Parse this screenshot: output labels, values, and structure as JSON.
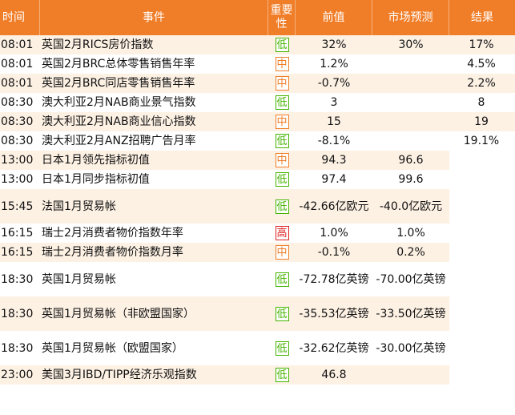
{
  "header": {
    "time": "时间",
    "event": "事件",
    "importance_line1": "重要",
    "importance_line2": "性",
    "previous": "前值",
    "forecast": "市场预测",
    "actual": "结果"
  },
  "importance_colors": {
    "low": "#44b400",
    "medium": "#f07d27",
    "high": "#e02020"
  },
  "rows": [
    {
      "time": "08:01",
      "event": "英国2月RICS房价指数",
      "importance": "低",
      "level": "low",
      "previous": "32%",
      "forecast": "30%",
      "actual": "17%",
      "tall": false,
      "actual_blank": false
    },
    {
      "time": "08:01",
      "event": "英国2月BRC总体零售销售年率",
      "importance": "中",
      "level": "mid",
      "previous": "1.2%",
      "forecast": "",
      "actual": "4.5%",
      "tall": false,
      "actual_blank": false
    },
    {
      "time": "08:01",
      "event": "英国2月BRC同店零售销售年率",
      "importance": "中",
      "level": "mid",
      "previous": "-0.7%",
      "forecast": "",
      "actual": "2.2%",
      "tall": false,
      "actual_blank": false
    },
    {
      "time": "08:30",
      "event": "澳大利亚2月NAB商业景气指数",
      "importance": "低",
      "level": "low",
      "previous": "3",
      "forecast": "",
      "actual": "8",
      "tall": false,
      "actual_blank": false
    },
    {
      "time": "08:30",
      "event": "澳大利亚2月NAB商业信心指数",
      "importance": "中",
      "level": "mid",
      "previous": "15",
      "forecast": "",
      "actual": "19",
      "tall": false,
      "actual_blank": false
    },
    {
      "time": "08:30",
      "event": "澳大利亚2月ANZ招聘广告月率",
      "importance": "低",
      "level": "low",
      "previous": "-8.1%",
      "forecast": "",
      "actual": "19.1%",
      "tall": false,
      "actual_blank": false
    },
    {
      "time": "13:00",
      "event": "日本1月领先指标初值",
      "importance": "中",
      "level": "mid",
      "previous": "94.3",
      "forecast": "96.6",
      "actual": "",
      "tall": false,
      "actual_blank": true
    },
    {
      "time": "13:00",
      "event": "日本1月同步指标初值",
      "importance": "低",
      "level": "low",
      "previous": "97.4",
      "forecast": "99.6",
      "actual": "",
      "tall": false,
      "actual_blank": true
    },
    {
      "time": "15:45",
      "event": "法国1月贸易帐",
      "importance": "低",
      "level": "low",
      "previous": "-42.66亿欧元",
      "forecast": "-40.0亿欧元",
      "actual": "",
      "tall": true,
      "actual_blank": true
    },
    {
      "time": "16:15",
      "event": "瑞士2月消费者物价指数年率",
      "importance": "高",
      "level": "high",
      "previous": "1.0%",
      "forecast": "1.0%",
      "actual": "",
      "tall": false,
      "actual_blank": true
    },
    {
      "time": "16:15",
      "event": "瑞士2月消费者物价指数月率",
      "importance": "中",
      "level": "mid",
      "previous": "-0.1%",
      "forecast": "0.2%",
      "actual": "",
      "tall": false,
      "actual_blank": true
    },
    {
      "time": "18:30",
      "event": "英国1月贸易帐",
      "importance": "低",
      "level": "low",
      "previous": "-72.78亿英镑",
      "forecast": "-70.00亿英镑",
      "actual": "",
      "tall": true,
      "actual_blank": true
    },
    {
      "time": "18:30",
      "event": "英国1月贸易帐（非欧盟国家）",
      "importance": "低",
      "level": "low",
      "previous": "-35.53亿英镑",
      "forecast": "-33.50亿英镑",
      "actual": "",
      "tall": true,
      "actual_blank": true
    },
    {
      "time": "18:30",
      "event": "英国1月贸易帐（欧盟国家）",
      "importance": "低",
      "level": "low",
      "previous": "-32.62亿英镑",
      "forecast": "-30.00亿英镑",
      "actual": "",
      "tall": true,
      "actual_blank": true
    },
    {
      "time": "23:00",
      "event": "美国3月IBD/TIPP经济乐观指数",
      "importance": "低",
      "level": "low",
      "previous": "46.8",
      "forecast": "",
      "actual": "",
      "tall": false,
      "actual_blank": true
    }
  ]
}
